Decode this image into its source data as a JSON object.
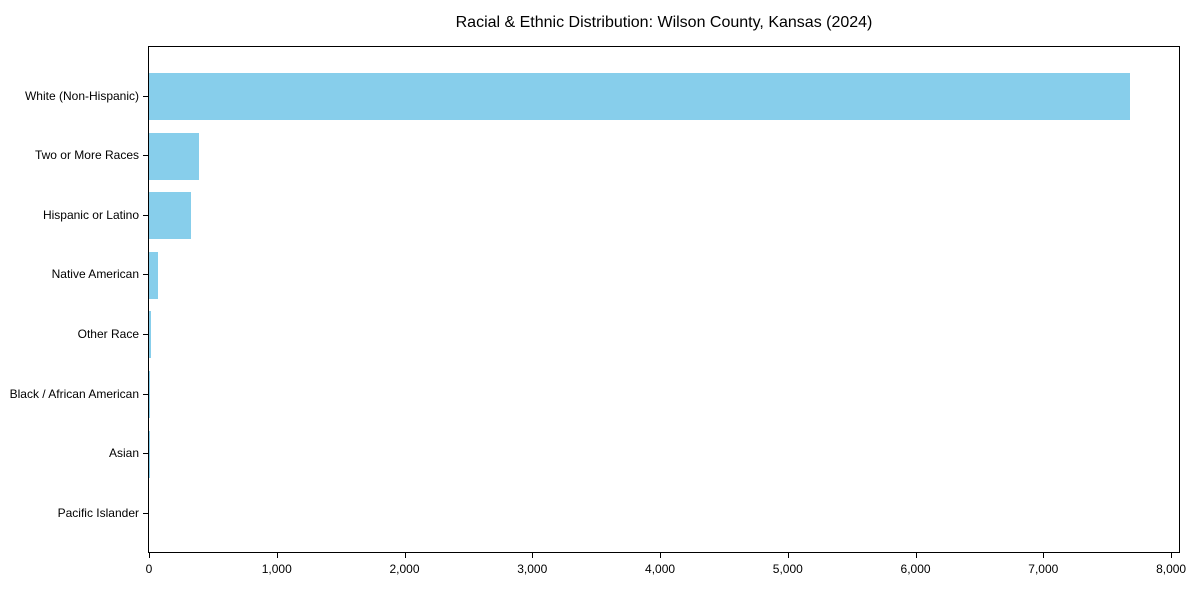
{
  "chart_data": {
    "type": "bar",
    "orientation": "horizontal",
    "title": "Racial & Ethnic Distribution: Wilson County, Kansas (2024)",
    "categories": [
      "White (Non-Hispanic)",
      "Two or More Races",
      "Hispanic or Latino",
      "Native American",
      "Other Race",
      "Black / African American",
      "Asian",
      "Pacific Islander"
    ],
    "values": [
      7680,
      395,
      325,
      70,
      15,
      10,
      3,
      0
    ],
    "xlabel": "",
    "ylabel": "",
    "xlim": [
      0,
      8062
    ],
    "xticks": [
      0,
      1000,
      2000,
      3000,
      4000,
      5000,
      6000,
      7000,
      8000
    ],
    "xtick_labels": [
      "0",
      "1,000",
      "2,000",
      "3,000",
      "4,000",
      "5,000",
      "6,000",
      "7,000",
      "8,000"
    ],
    "bar_color": "#87CEEB",
    "frame_color": "#000000",
    "text_color": "#000000",
    "background_color": "#ffffff",
    "grid": false,
    "legend": "none"
  }
}
